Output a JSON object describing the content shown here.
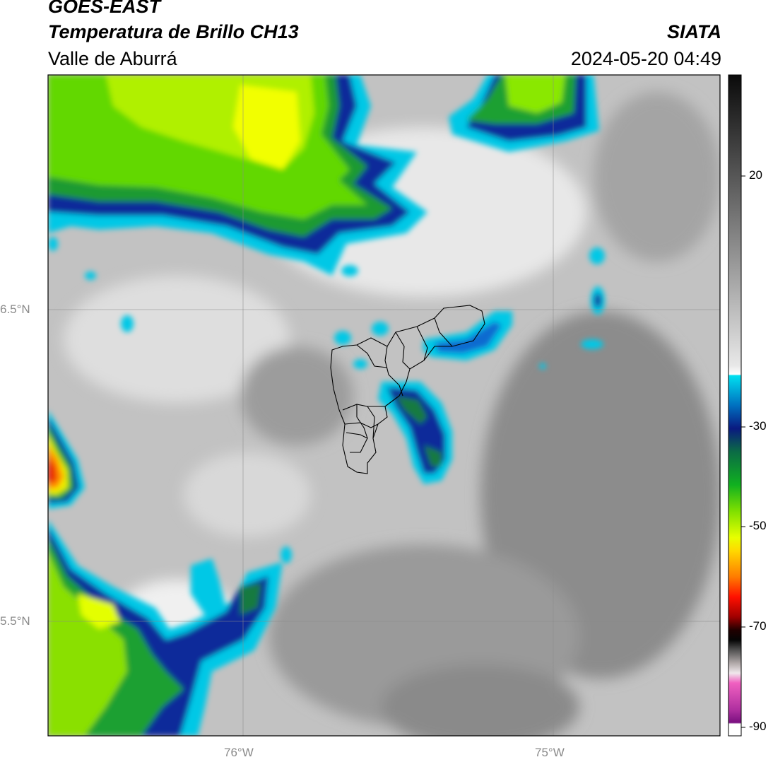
{
  "header": {
    "title_line1": "GOES-EAST",
    "title_line2": "Temperatura de Brillo CH13",
    "region": "Valle de Aburrá",
    "organization": "SIATA",
    "timestamp": "2024-05-20 04:49"
  },
  "map": {
    "gridlines": true,
    "lat_ticks": [
      "6.5°N",
      "5.5°N"
    ],
    "lon_ticks": [
      "76°W",
      "75°W"
    ]
  },
  "colorbar": {
    "tick_labels": [
      "20",
      "-30",
      "-50",
      "-70",
      "-90"
    ],
    "tick_values": [
      20,
      -30,
      -50,
      -70,
      -90
    ],
    "range": [
      -92,
      40
    ]
  },
  "colors": {
    "deep_convection_red": "#e81b00",
    "cold_yellow": "#ffe600",
    "cold_green": "#29c70c",
    "navy": "#081c78",
    "cyan": "#00c8e6",
    "magenta": "#9b1e8f"
  }
}
